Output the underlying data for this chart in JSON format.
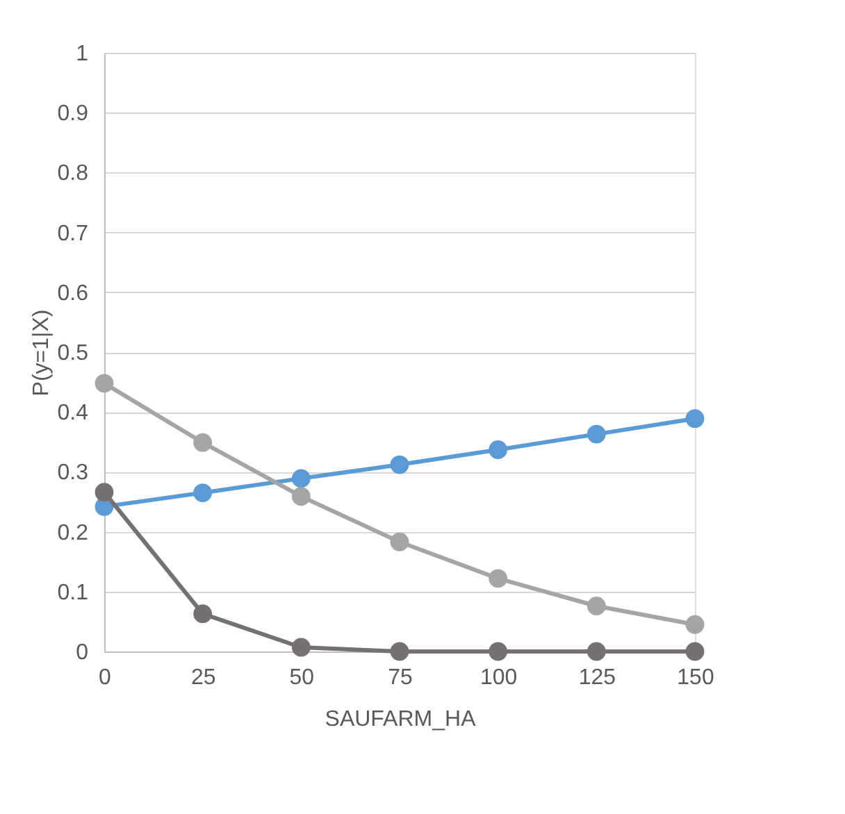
{
  "chart_data": {
    "type": "line",
    "xlabel": "SAUFARM_HA",
    "ylabel": "P(y=1|X)",
    "categories": [
      "0",
      "25",
      "50",
      "75",
      "100",
      "125",
      "150"
    ],
    "series": [
      {
        "color": "#5b9bd5",
        "values": [
          0.242,
          0.265,
          0.289,
          0.312,
          0.337,
          0.363,
          0.389
        ]
      },
      {
        "color": "#a5a5a5",
        "values": [
          0.448,
          0.349,
          0.259,
          0.183,
          0.122,
          0.076,
          0.045
        ]
      },
      {
        "color": "#767171",
        "values": [
          0.266,
          0.063,
          0.007,
          0,
          0,
          0,
          0
        ]
      }
    ],
    "ylim": [
      0,
      1
    ],
    "yticks": [
      0,
      0.1,
      0.2,
      0.3,
      0.4,
      0.5,
      0.6,
      0.7,
      0.8,
      0.9,
      1
    ],
    "grid": "y",
    "legend": false,
    "marker": "circle",
    "line_style": "solid"
  }
}
